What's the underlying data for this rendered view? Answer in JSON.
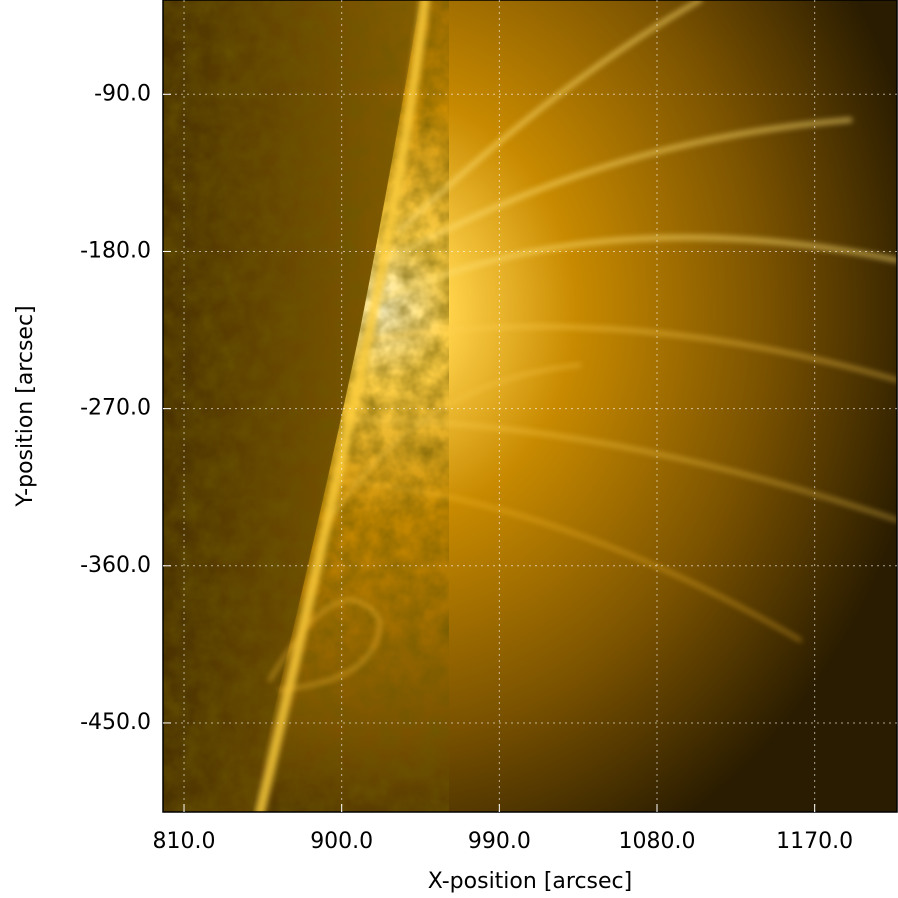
{
  "chart_data": {
    "type": "image",
    "xlabel": "X-position [arcsec]",
    "ylabel": "Y-position [arcsec]",
    "xlim": [
      798,
      1217
    ],
    "ylim": [
      -501,
      -36
    ],
    "xticks": [
      {
        "value": 810,
        "label": "810.0"
      },
      {
        "value": 900,
        "label": "900.0"
      },
      {
        "value": 990,
        "label": "990.0"
      },
      {
        "value": 1080,
        "label": "1080.0"
      },
      {
        "value": 1170,
        "label": "1170.0"
      }
    ],
    "yticks": [
      {
        "value": -90,
        "label": "-90.0"
      },
      {
        "value": -180,
        "label": "-180.0"
      },
      {
        "value": -270,
        "label": "-270.0"
      },
      {
        "value": -360,
        "label": "-360.0"
      },
      {
        "value": -450,
        "label": "-450.0"
      }
    ],
    "grid": true
  }
}
